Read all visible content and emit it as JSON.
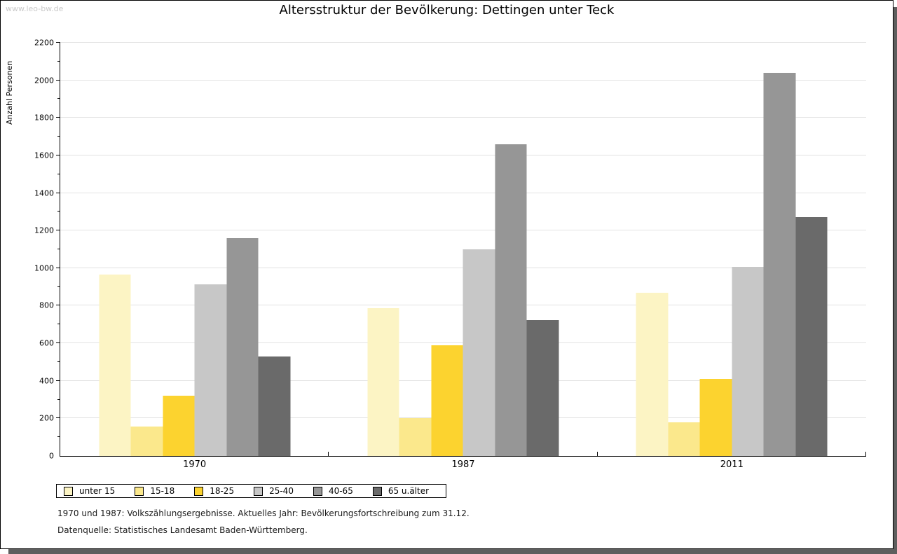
{
  "watermark": "www.leo-bw.de",
  "header": {
    "title": "Altersstruktur der Bevölkerung: Dettingen unter Teck"
  },
  "footnotes": {
    "line1": "1970 und 1987: Volkszählungsergebnisse. Aktuelles Jahr: Bevölkerungsfortschreibung zum 31.12.",
    "line2": "Datenquelle: Statistisches Landesamt Baden-Württemberg."
  },
  "chart_data": {
    "type": "bar",
    "title": "Altersstruktur der Bevölkerung: Dettingen unter Teck",
    "xlabel": "",
    "ylabel": "Anzahl Personen",
    "categories": [
      "1970",
      "1987",
      "2011"
    ],
    "series": [
      {
        "name": "unter 15",
        "color": "#FCF4C4",
        "values": [
          965,
          785,
          870
        ]
      },
      {
        "name": "15-18",
        "color": "#FBE88C",
        "values": [
          155,
          200,
          180
        ]
      },
      {
        "name": "18-25",
        "color": "#FCD32F",
        "values": [
          320,
          590,
          410
        ]
      },
      {
        "name": "25-40",
        "color": "#C7C7C7",
        "values": [
          915,
          1100,
          1005
        ]
      },
      {
        "name": "40-65",
        "color": "#969696",
        "values": [
          1160,
          1660,
          2040
        ]
      },
      {
        "name": "65 u.älter",
        "color": "#6A6A6A",
        "values": [
          530,
          725,
          1270
        ]
      }
    ],
    "ylim": [
      0,
      2200
    ],
    "ytick_step": 200,
    "ytick_minor_step": 100,
    "grid": "horizontal-major",
    "legend_position": "bottom"
  },
  "colors": {
    "gridline": "#E2E2E2",
    "axis": "#000000",
    "watermark": "#C9C9C9",
    "frame_shadow": "#5E5E5E"
  }
}
